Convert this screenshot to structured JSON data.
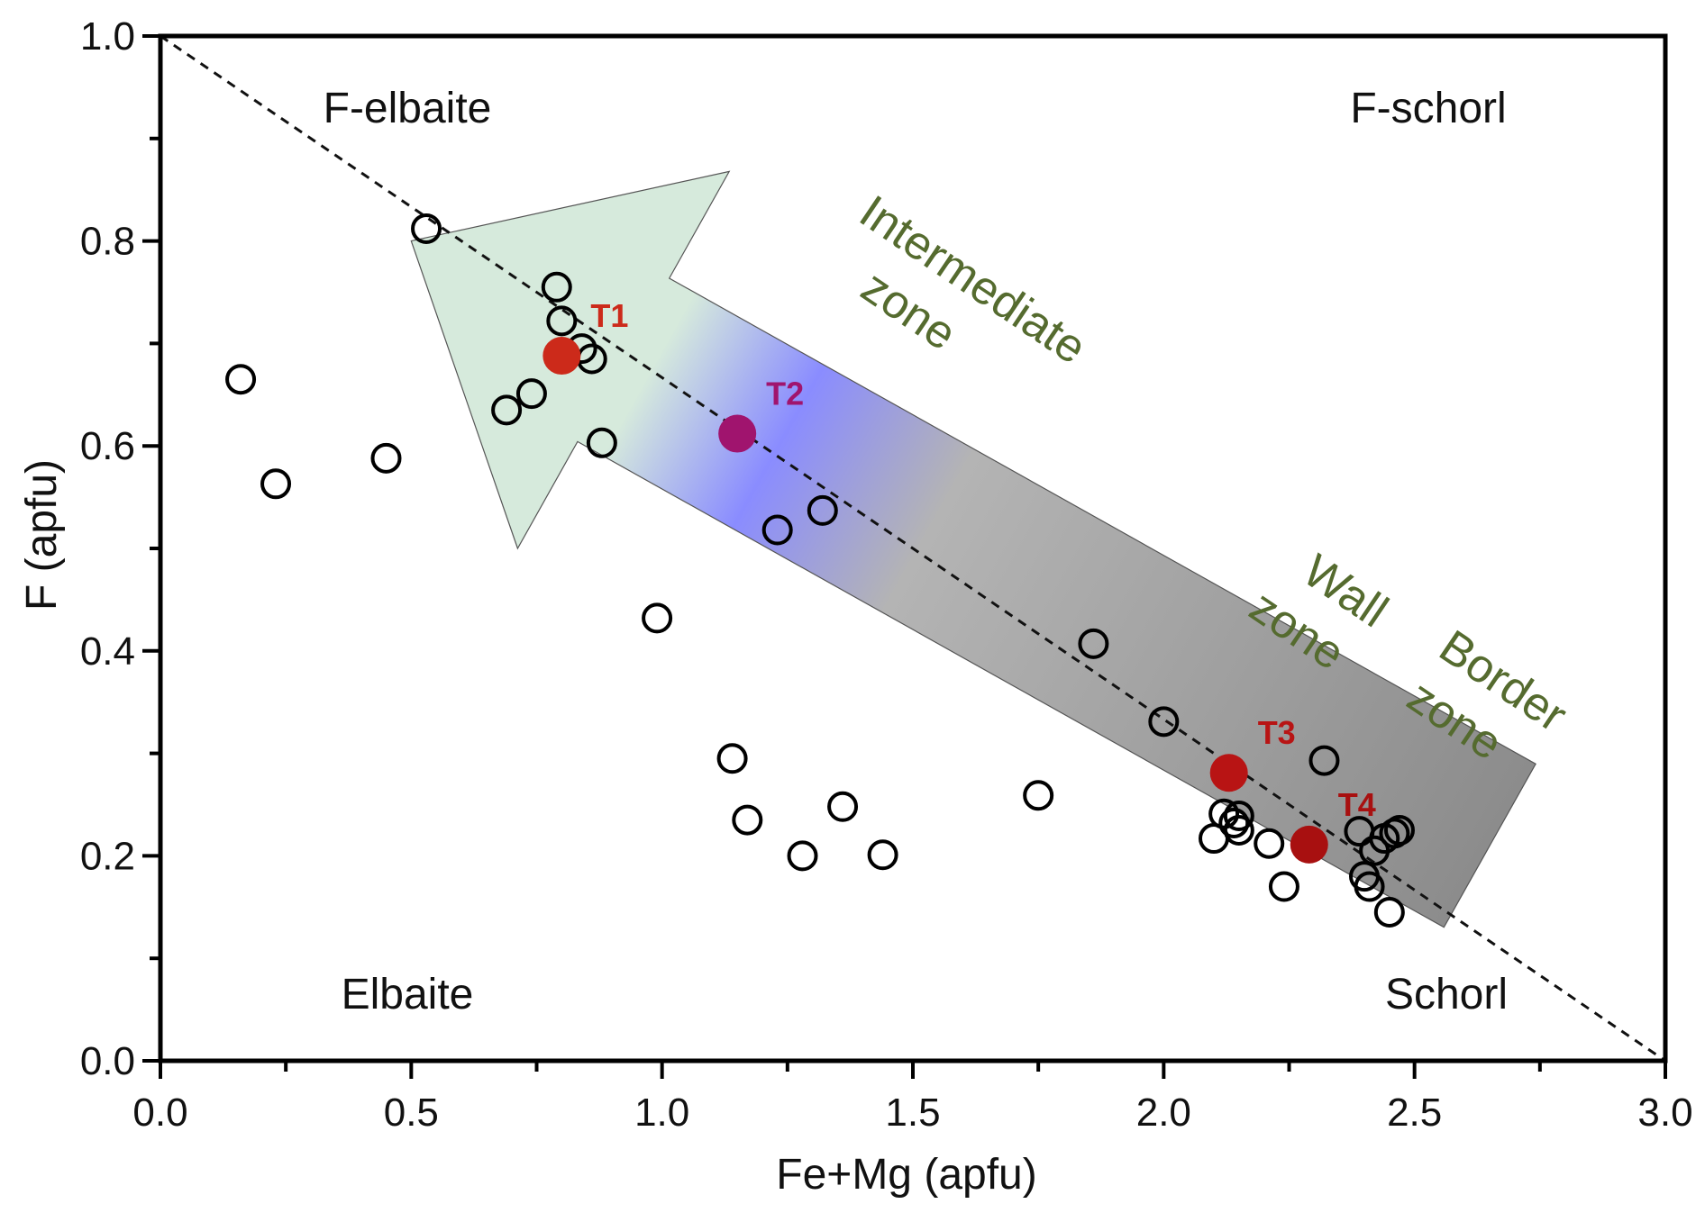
{
  "chart_data": {
    "type": "scatter",
    "xlabel": "Fe+Mg (apfu)",
    "ylabel": "F (apfu)",
    "xlim": [
      0,
      3.0
    ],
    "ylim": [
      0,
      1.0
    ],
    "xticks": [
      "0.0",
      "0.5",
      "1.0",
      "1.5",
      "2.0",
      "2.5",
      "3.0"
    ],
    "yticks": [
      "0.0",
      "0.2",
      "0.4",
      "0.6",
      "0.8",
      "1.0"
    ],
    "grid": false,
    "reference_line": {
      "style": "dashed",
      "from": [
        0,
        1.0
      ],
      "to": [
        3.0,
        0
      ]
    },
    "region_labels": {
      "f_elbaite": "F-elbaite",
      "f_schorl": "F-schorl",
      "elbaite": "Elbaite",
      "schorl": "Schorl"
    },
    "zone_labels": {
      "intermediate_1": "Intermediate",
      "intermediate_2": "zone",
      "wall_1": "Wall",
      "wall_2": "zone",
      "border_1": "Border",
      "border_2": "zone"
    },
    "arrow": {
      "from": [
        2.65,
        0.21
      ],
      "to": [
        0.5,
        0.8
      ],
      "gradient_colors": [
        "#d6eadc",
        "#8a8cff",
        "#b4b4b4",
        "#8c8c8c"
      ]
    },
    "series": [
      {
        "marker": "open-circle",
        "color": "#000000",
        "points": [
          [
            0.16,
            0.665
          ],
          [
            0.23,
            0.563
          ],
          [
            0.45,
            0.588
          ],
          [
            0.53,
            0.812
          ],
          [
            0.69,
            0.635
          ],
          [
            0.74,
            0.651
          ],
          [
            0.79,
            0.755
          ],
          [
            0.8,
            0.722
          ],
          [
            0.84,
            0.695
          ],
          [
            0.86,
            0.685
          ],
          [
            0.88,
            0.603
          ],
          [
            0.99,
            0.432
          ],
          [
            1.14,
            0.295
          ],
          [
            1.17,
            0.235
          ],
          [
            1.23,
            0.518
          ],
          [
            1.28,
            0.2
          ],
          [
            1.32,
            0.537
          ],
          [
            1.36,
            0.248
          ],
          [
            1.44,
            0.201
          ],
          [
            1.75,
            0.259
          ],
          [
            1.86,
            0.407
          ],
          [
            2.0,
            0.331
          ],
          [
            2.1,
            0.217
          ],
          [
            2.12,
            0.241
          ],
          [
            2.14,
            0.232
          ],
          [
            2.15,
            0.225
          ],
          [
            2.15,
            0.239
          ],
          [
            2.21,
            0.212
          ],
          [
            2.24,
            0.17
          ],
          [
            2.32,
            0.293
          ],
          [
            2.39,
            0.224
          ],
          [
            2.4,
            0.18
          ],
          [
            2.41,
            0.17
          ],
          [
            2.42,
            0.205
          ],
          [
            2.44,
            0.217
          ],
          [
            2.45,
            0.145
          ],
          [
            2.46,
            0.222
          ],
          [
            2.47,
            0.225
          ]
        ]
      },
      {
        "marker": "filled-circle",
        "labeled_points": [
          {
            "label": "T1",
            "x": 0.8,
            "y": 0.688,
            "color": "#cc2a1a"
          },
          {
            "label": "T2",
            "x": 1.15,
            "y": 0.612,
            "color": "#a0146e"
          },
          {
            "label": "T3",
            "x": 2.13,
            "y": 0.281,
            "color": "#b81414"
          },
          {
            "label": "T4",
            "x": 2.29,
            "y": 0.211,
            "color": "#a81010"
          }
        ]
      }
    ]
  }
}
